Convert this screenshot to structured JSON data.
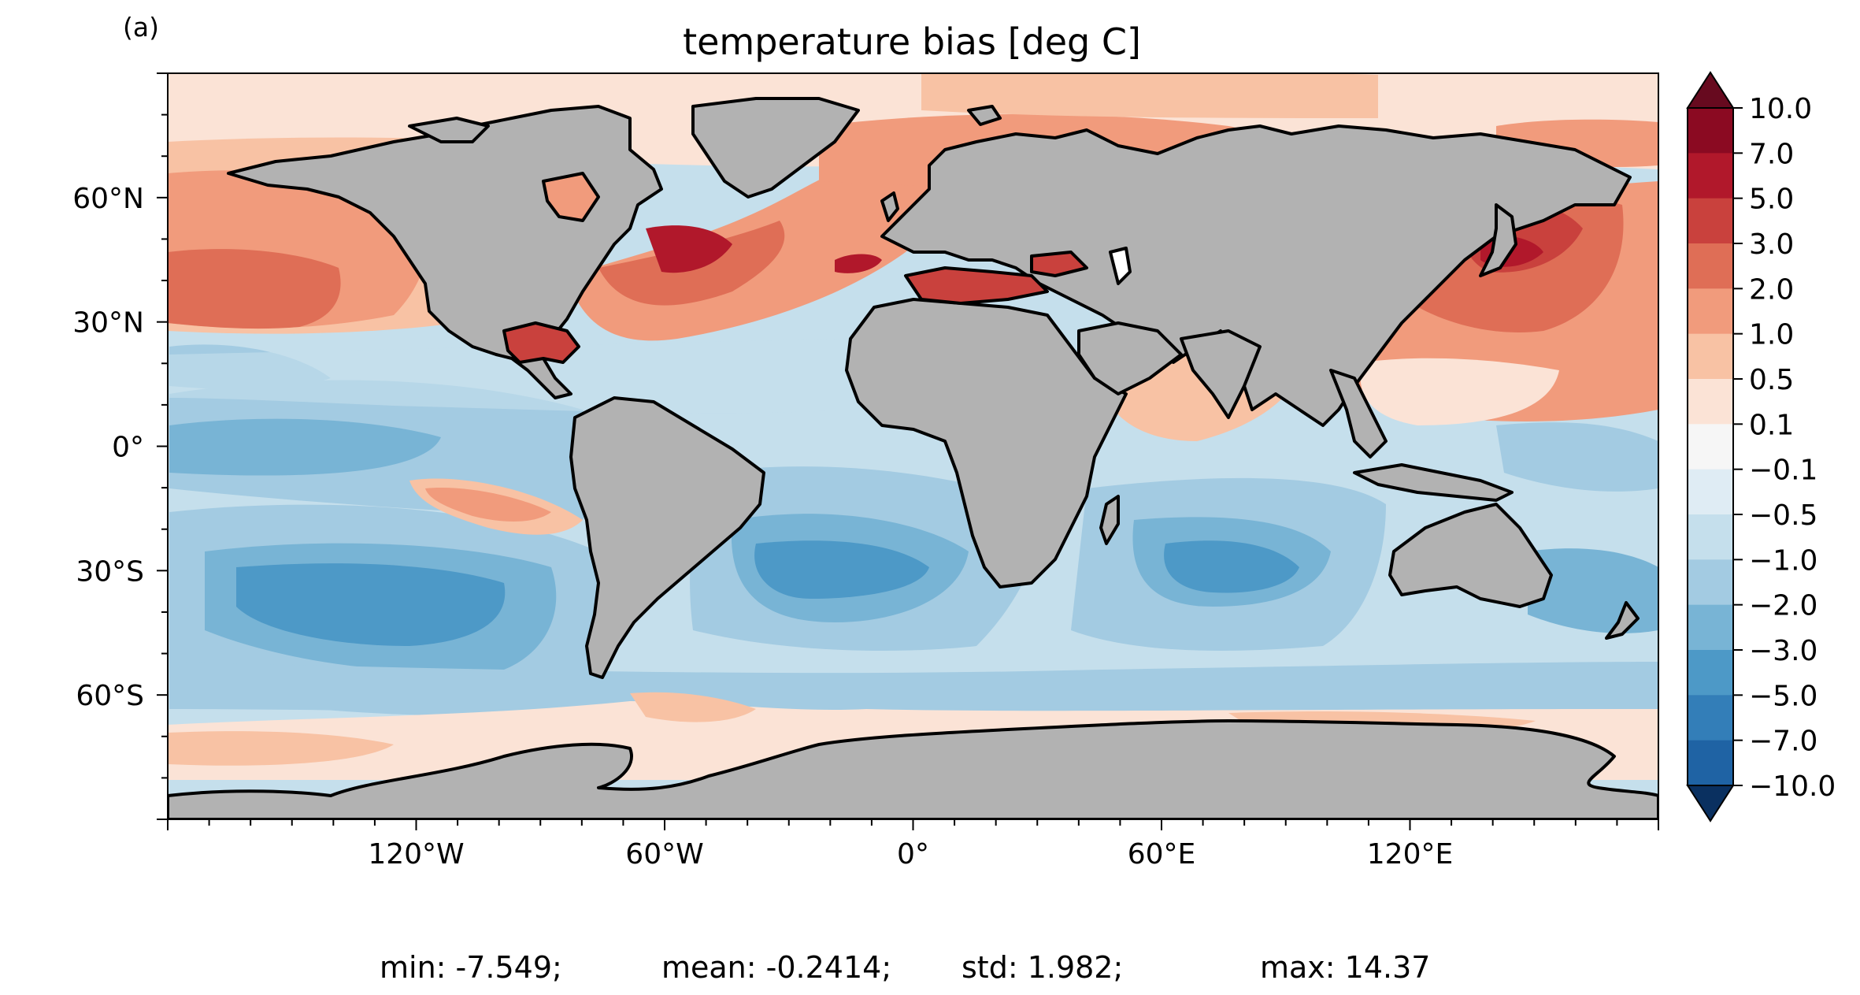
{
  "figure": {
    "panel_label": "(a)",
    "title": "temperature bias [deg C]",
    "stats": [
      {
        "label": "min: -7.549;"
      },
      {
        "label": "mean: -0.2414;"
      },
      {
        "label": "std: 1.982;"
      },
      {
        "label": "max: 14.37"
      }
    ]
  },
  "map": {
    "projection": "PlateCarree",
    "lon_range": [
      -180,
      180
    ],
    "lat_range": [
      -90,
      90
    ],
    "land_color": "#b2b2b2",
    "coastline_color": "#000000",
    "x_ticks": [
      {
        "lon": -120,
        "label": "120°W"
      },
      {
        "lon": -60,
        "label": "60°W"
      },
      {
        "lon": 0,
        "label": "0°"
      },
      {
        "lon": 60,
        "label": "60°E"
      },
      {
        "lon": 120,
        "label": "120°E"
      }
    ],
    "y_ticks": [
      {
        "lat": 60,
        "label": "60°N"
      },
      {
        "lat": 30,
        "label": "30°N"
      },
      {
        "lat": 0,
        "label": "0°"
      },
      {
        "lat": -30,
        "label": "30°S"
      },
      {
        "lat": -60,
        "label": "60°S"
      }
    ]
  },
  "colorbar": {
    "colormap": "RdBu_r",
    "extend": "both",
    "levels": [
      {
        "label": "10.0",
        "color": "#8b0a22"
      },
      {
        "label": "7.0",
        "color": "#b1182b"
      },
      {
        "label": "5.0",
        "color": "#c9413d"
      },
      {
        "label": "3.0",
        "color": "#df6e56"
      },
      {
        "label": "2.0",
        "color": "#f19b7c"
      },
      {
        "label": "1.0",
        "color": "#f8c2a4"
      },
      {
        "label": "0.5",
        "color": "#fbe3d6"
      },
      {
        "label": "0.1",
        "color": "#f6f6f6"
      },
      {
        "label": "−0.1",
        "color": "#dfecf4"
      },
      {
        "label": "−0.5",
        "color": "#c5dfec"
      },
      {
        "label": "−1.0",
        "color": "#a3cbe2"
      },
      {
        "label": "−2.0",
        "color": "#78b4d5"
      },
      {
        "label": "−3.0",
        "color": "#4d99c7"
      },
      {
        "label": "−5.0",
        "color": "#337eb8"
      },
      {
        "label": "−7.0",
        "color": "#1f63a4"
      },
      {
        "label": "−10.0",
        "color": "#0e4179"
      }
    ],
    "over_color": "#670a1f",
    "under_color": "#0a3060"
  }
}
